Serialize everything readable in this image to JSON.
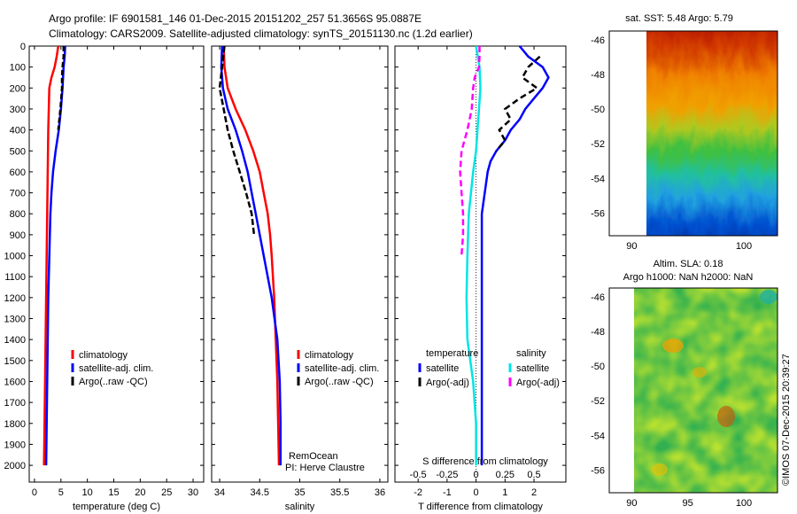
{
  "header": {
    "line1": "Argo profile: IF 6901581_146 01-Dec-2015 20151202_257 51.3656S 95.0887E",
    "line2": "Climatology: CARS2009. Satellite-adjusted climatology: synTS_20151130.nc (1.2d earlier)"
  },
  "colors": {
    "climatology": "#ff0000",
    "satellite": "#0000ff",
    "argo": "#000000",
    "sal_sat": "#00e5e5",
    "sal_argo": "#ff00ff"
  },
  "chart_data": [
    {
      "type": "line",
      "panel": "temperature",
      "xlabel": "temperature (deg C)",
      "xlim": [
        -1,
        32
      ],
      "ylim": [
        2080,
        0
      ],
      "xticks": [
        0,
        5,
        10,
        15,
        20,
        25,
        30
      ],
      "xtick_labels": [
        "0",
        "5",
        "10",
        "15",
        "20",
        "25",
        "30"
      ],
      "yticks": [
        0,
        100,
        200,
        300,
        400,
        500,
        600,
        700,
        800,
        900,
        1000,
        1100,
        1200,
        1300,
        1400,
        1500,
        1600,
        1700,
        1800,
        1900,
        2000
      ],
      "ytick_labels": [
        "0",
        "100",
        "200",
        "300",
        "400",
        "500",
        "600",
        "700",
        "800",
        "900",
        "1000",
        "1100",
        "1200",
        "1300",
        "1400",
        "1500",
        "1600",
        "1700",
        "1800",
        "1900",
        "2000"
      ],
      "legend": [
        "climatology",
        "satellite-adj. clim.",
        "Argo(..raw -QC)"
      ],
      "series": [
        {
          "name": "climatology",
          "color": "#ff0000",
          "dash": "",
          "depth": [
            0,
            50,
            100,
            150,
            200,
            300,
            400,
            600,
            800,
            1000,
            1200,
            1400,
            1600,
            1800,
            2000
          ],
          "x": [
            4.5,
            4.2,
            3.8,
            3.2,
            2.8,
            2.7,
            2.6,
            2.5,
            2.4,
            2.3,
            2.2,
            2.1,
            2.0,
            1.9,
            1.8
          ]
        },
        {
          "name": "satellite-adj. clim.",
          "color": "#0000ff",
          "dash": "",
          "depth": [
            0,
            50,
            100,
            150,
            200,
            300,
            400,
            500,
            600,
            700,
            800,
            1000,
            1200,
            1400,
            1600,
            1800,
            2000
          ],
          "x": [
            5.8,
            5.7,
            5.5,
            5.4,
            5.3,
            5.0,
            4.6,
            4.0,
            3.5,
            3.2,
            3.0,
            2.8,
            2.6,
            2.5,
            2.4,
            2.3,
            2.2
          ]
        },
        {
          "name": "Argo(..raw -QC)",
          "color": "#000000",
          "dash": "6 3",
          "depth": [
            0,
            50,
            100,
            150,
            200,
            300,
            400
          ],
          "x": [
            5.5,
            5.5,
            5.3,
            5.2,
            5.2,
            4.9,
            4.5
          ]
        }
      ]
    },
    {
      "type": "line",
      "panel": "salinity",
      "xlabel": "salinity",
      "xlim": [
        33.9,
        36.1
      ],
      "ylim": [
        2080,
        0
      ],
      "xticks": [
        34,
        34.5,
        35,
        35.5,
        36
      ],
      "xtick_labels": [
        "34",
        "34.5",
        "35",
        "35.5",
        "36"
      ],
      "legend": [
        "climatology",
        "satellite-adj. clim.",
        "Argo(..raw -QC)"
      ],
      "annotations": [
        "RemOcean",
        "PI: Herve Claustre"
      ],
      "series": [
        {
          "name": "climatology",
          "color": "#ff0000",
          "dash": "",
          "depth": [
            0,
            100,
            200,
            300,
            400,
            500,
            600,
            700,
            800,
            900,
            1000,
            1200,
            1400,
            1600,
            1800,
            2000
          ],
          "x": [
            34.05,
            34.06,
            34.1,
            34.2,
            34.32,
            34.42,
            34.5,
            34.55,
            34.6,
            34.63,
            34.65,
            34.68,
            34.7,
            34.72,
            34.73,
            34.74
          ]
        },
        {
          "name": "satellite-adj. clim.",
          "color": "#0000ff",
          "dash": "",
          "depth": [
            0,
            100,
            200,
            300,
            400,
            500,
            600,
            700,
            800,
            900,
            1000,
            1200,
            1400,
            1600,
            1800,
            2000
          ],
          "x": [
            34.03,
            34.02,
            34.04,
            34.1,
            34.2,
            34.28,
            34.35,
            34.4,
            34.45,
            34.5,
            34.55,
            34.65,
            34.72,
            34.75,
            34.76,
            34.76
          ]
        },
        {
          "name": "Argo(..raw -QC)",
          "color": "#000000",
          "dash": "7 3",
          "depth": [
            0,
            100,
            200,
            300,
            400,
            500,
            600,
            700,
            800,
            900
          ],
          "x": [
            34.06,
            34.03,
            34.0,
            34.05,
            34.1,
            34.17,
            34.25,
            34.33,
            34.4,
            34.43
          ]
        }
      ]
    },
    {
      "type": "line",
      "panel": "difference",
      "xlabel": "T difference from climatology",
      "xlabel_top": "S difference from climatology",
      "xlim": [
        -2.8,
        3.1
      ],
      "ylim": [
        2080,
        0
      ],
      "xticks": [
        -2,
        -1,
        0,
        1,
        2
      ],
      "xtick_labels": [
        "-2",
        "-1",
        "0",
        "1",
        "2"
      ],
      "sticks_labels": [
        "-0.5",
        "-0.25",
        "0",
        "0.25",
        "0.5"
      ],
      "legend_headers": [
        "temperature",
        "salinity"
      ],
      "legend": [
        "satellite",
        "Argo(-adj)",
        "satellite",
        "Argo(-adj)"
      ],
      "series": [
        {
          "name": "satellite",
          "group": "temperature",
          "color": "#0000ff",
          "dash": "",
          "depth": [
            0,
            50,
            100,
            150,
            200,
            250,
            300,
            350,
            400,
            450,
            500,
            550,
            600,
            700,
            800,
            900,
            1000,
            1200,
            1400,
            1600,
            1800,
            2000
          ],
          "x": [
            1.5,
            1.8,
            2.3,
            2.5,
            2.3,
            2.0,
            1.7,
            1.5,
            1.2,
            1.0,
            0.7,
            0.5,
            0.4,
            0.3,
            0.2,
            0.2,
            0.2,
            0.2,
            0.2,
            0.2,
            0.2,
            0.2
          ]
        },
        {
          "name": "Argo(-adj)",
          "group": "temperature",
          "color": "#000000",
          "dash": "7 4",
          "depth": [
            50,
            100,
            150,
            200,
            250,
            300,
            350,
            400,
            450,
            500
          ],
          "x": [
            2.2,
            1.8,
            1.6,
            2.1,
            1.5,
            1.0,
            1.2,
            0.8,
            1.0,
            0.7
          ]
        },
        {
          "name": "satellite",
          "group": "salinity",
          "color": "#00e5e5",
          "dash": "",
          "depth": [
            0,
            100,
            200,
            300,
            400,
            500,
            600,
            800,
            1000,
            1200,
            1400,
            1600,
            1800,
            2000
          ],
          "x": [
            0.0,
            0.12,
            0.15,
            0.1,
            0.05,
            0.0,
            -0.1,
            -0.25,
            -0.3,
            -0.33,
            -0.3,
            -0.1,
            0.0,
            0.0
          ]
        },
        {
          "name": "Argo(-adj)",
          "group": "salinity",
          "color": "#ff00ff",
          "dash": "7 4",
          "depth": [
            0,
            50,
            100,
            150,
            200,
            300,
            400,
            500,
            600,
            700,
            800,
            900,
            1000
          ],
          "x": [
            0.12,
            0.12,
            0.1,
            -0.05,
            -0.1,
            -0.15,
            -0.3,
            -0.5,
            -0.55,
            -0.5,
            -0.45,
            -0.45,
            -0.5
          ]
        }
      ]
    },
    {
      "type": "heatmap",
      "panel": "sst_map",
      "title": "sat. SST: 5.48 Argo: 5.79",
      "xlim": [
        88,
        103
      ],
      "ylim": [
        -57.3,
        -45.5
      ],
      "xticks": [
        90,
        95,
        100
      ],
      "xtick_labels": [
        "90",
        "",
        "100"
      ],
      "yticks": [
        -46,
        -48,
        -50,
        -52,
        -54,
        -56
      ],
      "ytick_labels": [
        "-46",
        "-48",
        "-50",
        "-52",
        "-54",
        "-56"
      ]
    },
    {
      "type": "heatmap",
      "panel": "sla_map",
      "title": "Altim. SLA: 0.18",
      "subtitle": "Argo h1000: NaN h2000: NaN",
      "xlim": [
        88,
        103
      ],
      "ylim": [
        -57.3,
        -45.5
      ],
      "xticks": [
        90,
        95,
        100
      ],
      "xtick_labels": [
        "90",
        "95",
        "100"
      ],
      "yticks": [
        -46,
        -48,
        -50,
        -52,
        -54,
        -56
      ],
      "ytick_labels": [
        "-46",
        "-48",
        "-50",
        "-52",
        "-54",
        "-56"
      ]
    }
  ],
  "footer": {
    "stamp": "©IMOS 07-Dec-2015 20:39:27"
  }
}
